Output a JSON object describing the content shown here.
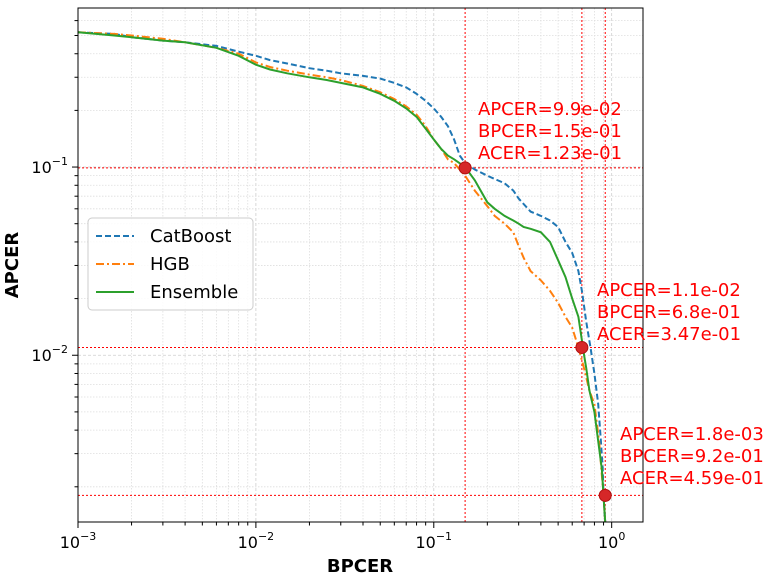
{
  "chart_data": {
    "type": "line",
    "title": "",
    "xlabel": "BPCER",
    "ylabel": "APCER",
    "xscale": "log",
    "yscale": "log",
    "xlim": [
      0.001,
      1.5
    ],
    "ylim": [
      0.0013,
      0.7
    ],
    "grid": true,
    "grid_minor": true,
    "legend_position": "center-left",
    "x_ticks": [
      {
        "value": 0.001,
        "base": "10",
        "exp": "−3"
      },
      {
        "value": 0.01,
        "base": "10",
        "exp": "−2"
      },
      {
        "value": 0.1,
        "base": "10",
        "exp": "−1"
      },
      {
        "value": 1,
        "base": "10",
        "exp": "0"
      }
    ],
    "y_ticks": [
      {
        "value": 0.01,
        "base": "10",
        "exp": "−2"
      },
      {
        "value": 0.1,
        "base": "10",
        "exp": "−1"
      }
    ],
    "series": [
      {
        "name": "CatBoost",
        "color": "#1f77b4",
        "dash": "dashed",
        "points": [
          [
            0.001,
            0.52
          ],
          [
            0.0016,
            0.51
          ],
          [
            0.002,
            0.49
          ],
          [
            0.003,
            0.47
          ],
          [
            0.004,
            0.46
          ],
          [
            0.006,
            0.44
          ],
          [
            0.008,
            0.41
          ],
          [
            0.01,
            0.39
          ],
          [
            0.012,
            0.37
          ],
          [
            0.015,
            0.355
          ],
          [
            0.02,
            0.335
          ],
          [
            0.025,
            0.325
          ],
          [
            0.03,
            0.315
          ],
          [
            0.04,
            0.305
          ],
          [
            0.05,
            0.295
          ],
          [
            0.06,
            0.28
          ],
          [
            0.07,
            0.265
          ],
          [
            0.08,
            0.245
          ],
          [
            0.09,
            0.225
          ],
          [
            0.1,
            0.205
          ],
          [
            0.11,
            0.185
          ],
          [
            0.12,
            0.165
          ],
          [
            0.13,
            0.14
          ],
          [
            0.14,
            0.115
          ],
          [
            0.15,
            0.105
          ],
          [
            0.17,
            0.097
          ],
          [
            0.2,
            0.09
          ],
          [
            0.25,
            0.082
          ],
          [
            0.28,
            0.075
          ],
          [
            0.3,
            0.068
          ],
          [
            0.35,
            0.058
          ],
          [
            0.4,
            0.055
          ],
          [
            0.45,
            0.052
          ],
          [
            0.5,
            0.048
          ],
          [
            0.55,
            0.04
          ],
          [
            0.6,
            0.035
          ],
          [
            0.65,
            0.028
          ],
          [
            0.68,
            0.022
          ],
          [
            0.72,
            0.015
          ],
          [
            0.76,
            0.011
          ],
          [
            0.8,
            0.008
          ],
          [
            0.84,
            0.0055
          ],
          [
            0.87,
            0.0035
          ],
          [
            0.89,
            0.0025
          ],
          [
            0.9,
            0.0018
          ],
          [
            0.92,
            0.0013
          ]
        ]
      },
      {
        "name": "HGB",
        "color": "#ff7f0e",
        "dash": "dashdot",
        "points": [
          [
            0.001,
            0.52
          ],
          [
            0.0016,
            0.51
          ],
          [
            0.002,
            0.5
          ],
          [
            0.003,
            0.48
          ],
          [
            0.004,
            0.46
          ],
          [
            0.006,
            0.43
          ],
          [
            0.008,
            0.4
          ],
          [
            0.01,
            0.36
          ],
          [
            0.012,
            0.34
          ],
          [
            0.015,
            0.325
          ],
          [
            0.02,
            0.31
          ],
          [
            0.025,
            0.3
          ],
          [
            0.03,
            0.29
          ],
          [
            0.04,
            0.27
          ],
          [
            0.05,
            0.25
          ],
          [
            0.06,
            0.23
          ],
          [
            0.07,
            0.21
          ],
          [
            0.08,
            0.19
          ],
          [
            0.09,
            0.165
          ],
          [
            0.1,
            0.14
          ],
          [
            0.11,
            0.125
          ],
          [
            0.12,
            0.11
          ],
          [
            0.13,
            0.105
          ],
          [
            0.15,
            0.09
          ],
          [
            0.17,
            0.075
          ],
          [
            0.2,
            0.062
          ],
          [
            0.22,
            0.055
          ],
          [
            0.25,
            0.05
          ],
          [
            0.28,
            0.045
          ],
          [
            0.3,
            0.038
          ],
          [
            0.32,
            0.033
          ],
          [
            0.35,
            0.028
          ],
          [
            0.4,
            0.025
          ],
          [
            0.45,
            0.022
          ],
          [
            0.5,
            0.019
          ],
          [
            0.55,
            0.016
          ],
          [
            0.6,
            0.014
          ],
          [
            0.65,
            0.011
          ],
          [
            0.7,
            0.0085
          ],
          [
            0.75,
            0.0065
          ],
          [
            0.8,
            0.0055
          ],
          [
            0.85,
            0.0035
          ],
          [
            0.9,
            0.0018
          ],
          [
            0.92,
            0.0013
          ]
        ]
      },
      {
        "name": "Ensemble",
        "color": "#2ca02c",
        "dash": "solid",
        "points": [
          [
            0.001,
            0.52
          ],
          [
            0.0016,
            0.5
          ],
          [
            0.002,
            0.49
          ],
          [
            0.003,
            0.47
          ],
          [
            0.004,
            0.46
          ],
          [
            0.006,
            0.43
          ],
          [
            0.008,
            0.39
          ],
          [
            0.01,
            0.35
          ],
          [
            0.012,
            0.33
          ],
          [
            0.015,
            0.315
          ],
          [
            0.02,
            0.3
          ],
          [
            0.025,
            0.29
          ],
          [
            0.03,
            0.28
          ],
          [
            0.04,
            0.265
          ],
          [
            0.05,
            0.245
          ],
          [
            0.06,
            0.225
          ],
          [
            0.07,
            0.205
          ],
          [
            0.08,
            0.185
          ],
          [
            0.09,
            0.16
          ],
          [
            0.1,
            0.14
          ],
          [
            0.11,
            0.125
          ],
          [
            0.12,
            0.115
          ],
          [
            0.13,
            0.11
          ],
          [
            0.15,
            0.1
          ],
          [
            0.17,
            0.085
          ],
          [
            0.2,
            0.065
          ],
          [
            0.22,
            0.06
          ],
          [
            0.25,
            0.055
          ],
          [
            0.28,
            0.052
          ],
          [
            0.3,
            0.05
          ],
          [
            0.32,
            0.048
          ],
          [
            0.35,
            0.047
          ],
          [
            0.4,
            0.045
          ],
          [
            0.45,
            0.04
          ],
          [
            0.5,
            0.032
          ],
          [
            0.55,
            0.026
          ],
          [
            0.6,
            0.02
          ],
          [
            0.65,
            0.016
          ],
          [
            0.68,
            0.012
          ],
          [
            0.7,
            0.01
          ],
          [
            0.72,
            0.0085
          ],
          [
            0.75,
            0.0065
          ],
          [
            0.8,
            0.005
          ],
          [
            0.84,
            0.0035
          ],
          [
            0.88,
            0.0025
          ],
          [
            0.9,
            0.0018
          ],
          [
            0.92,
            0.0013
          ]
        ]
      }
    ],
    "operating_points": [
      {
        "bpcer": 0.15,
        "apcer": 0.099,
        "labels": [
          "APCER=9.9e-02",
          "BPCER=1.5e-01",
          "ACER=1.23e-01"
        ]
      },
      {
        "bpcer": 0.68,
        "apcer": 0.011,
        "labels": [
          "APCER=1.1e-02",
          "BPCER=6.8e-01",
          "ACER=3.47e-01"
        ]
      },
      {
        "bpcer": 0.92,
        "apcer": 0.0018,
        "labels": [
          "APCER=1.8e-03",
          "BPCER=9.2e-01",
          "ACER=4.59e-01"
        ]
      }
    ],
    "annotation_color": "#ff0000",
    "marker_color": "#d62728"
  }
}
